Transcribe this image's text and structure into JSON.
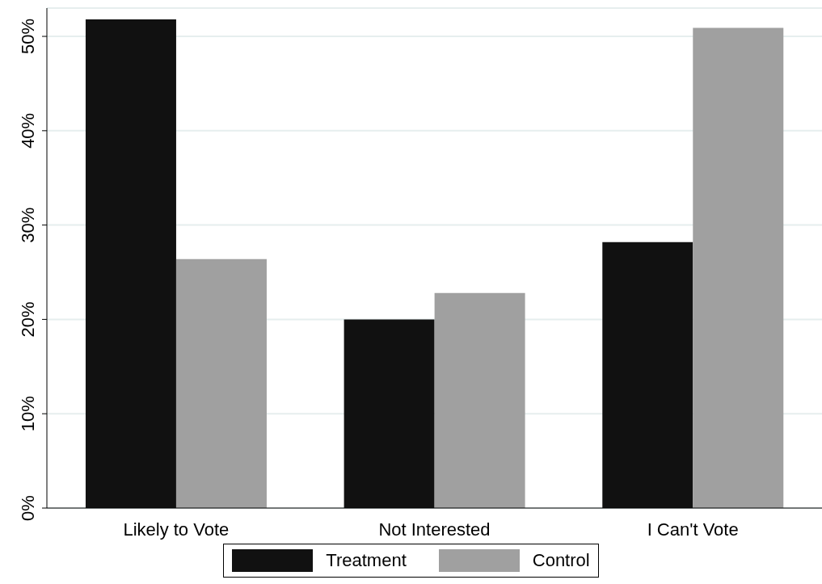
{
  "chart_data": {
    "type": "bar",
    "categories": [
      "Likely to Vote",
      "Not Interested",
      "I Can't Vote"
    ],
    "series": [
      {
        "name": "Treatment",
        "color": "#111111",
        "values": [
          51.8,
          20.0,
          28.2
        ]
      },
      {
        "name": "Control",
        "color": "#a0a0a0",
        "values": [
          26.4,
          22.8,
          50.9
        ]
      }
    ],
    "ylim": [
      0,
      53
    ],
    "yticks": [
      {
        "value": 0,
        "label": "0%"
      },
      {
        "value": 10,
        "label": "10%"
      },
      {
        "value": 20,
        "label": "20%"
      },
      {
        "value": 30,
        "label": "30%"
      },
      {
        "value": 40,
        "label": "40%"
      },
      {
        "value": 50,
        "label": "50%"
      }
    ],
    "grid": "y",
    "legend": "bottom"
  }
}
